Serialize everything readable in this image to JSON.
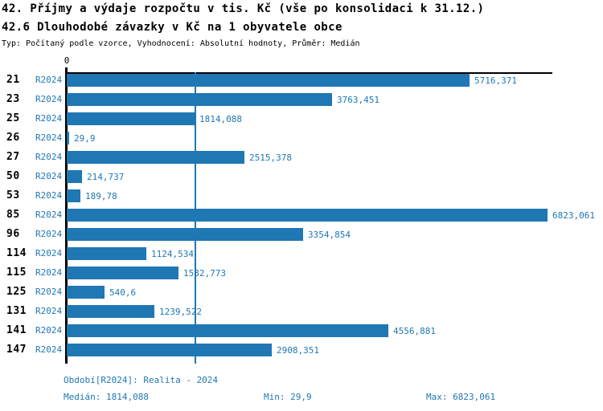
{
  "header": {
    "title_line1": "42. Příjmy a výdaje rozpočtu v tis. Kč (vše po konsolidaci k 31.12.)",
    "title_line2": "42.6 Dlouhodobé závazky v Kč na 1 obyvatele obce",
    "meta_line": "Typ: Počítaný podle vzorce, Vyhodnocení: Absolutní hodnoty, Průměr: Medián"
  },
  "chart_data": {
    "type": "bar",
    "orientation": "horizontal",
    "title": "42.6 Dlouhodobé závazky v Kč na 1 obyvatele obce",
    "xlabel": "",
    "ylabel": "",
    "xlim": [
      0,
      6900
    ],
    "x_tick_labels": [
      "0"
    ],
    "grid": "off",
    "legend": "none",
    "series_label": "R2024",
    "categories": [
      "21",
      "23",
      "25",
      "26",
      "27",
      "50",
      "53",
      "85",
      "96",
      "114",
      "115",
      "125",
      "131",
      "141",
      "147"
    ],
    "values": [
      5716.371,
      3763.451,
      1814.088,
      29.9,
      2515.378,
      214.737,
      189.78,
      6823.061,
      3354.854,
      1124.534,
      1582.773,
      540.6,
      1239.522,
      4556.881,
      2908.351
    ],
    "value_labels": [
      "5716,371",
      "3763,451",
      "1814,088",
      "29,9",
      "2515,378",
      "214,737",
      "189,78",
      "6823,061",
      "3354,854",
      "1124,534",
      "1582,773",
      "540,6",
      "1239,522",
      "4556,881",
      "2908,351"
    ],
    "median_value": 1814.088,
    "annotations": [
      "median reference line at 1814,088"
    ]
  },
  "footer": {
    "period": "Období[R2024]: Realita - 2024",
    "median": "Medián: 1814,088",
    "min": "Min: 29,9",
    "max": "Max: 6823,061"
  },
  "colors": {
    "accent": "#1f77b4",
    "ink": "#000000",
    "background": "#ffffff"
  }
}
